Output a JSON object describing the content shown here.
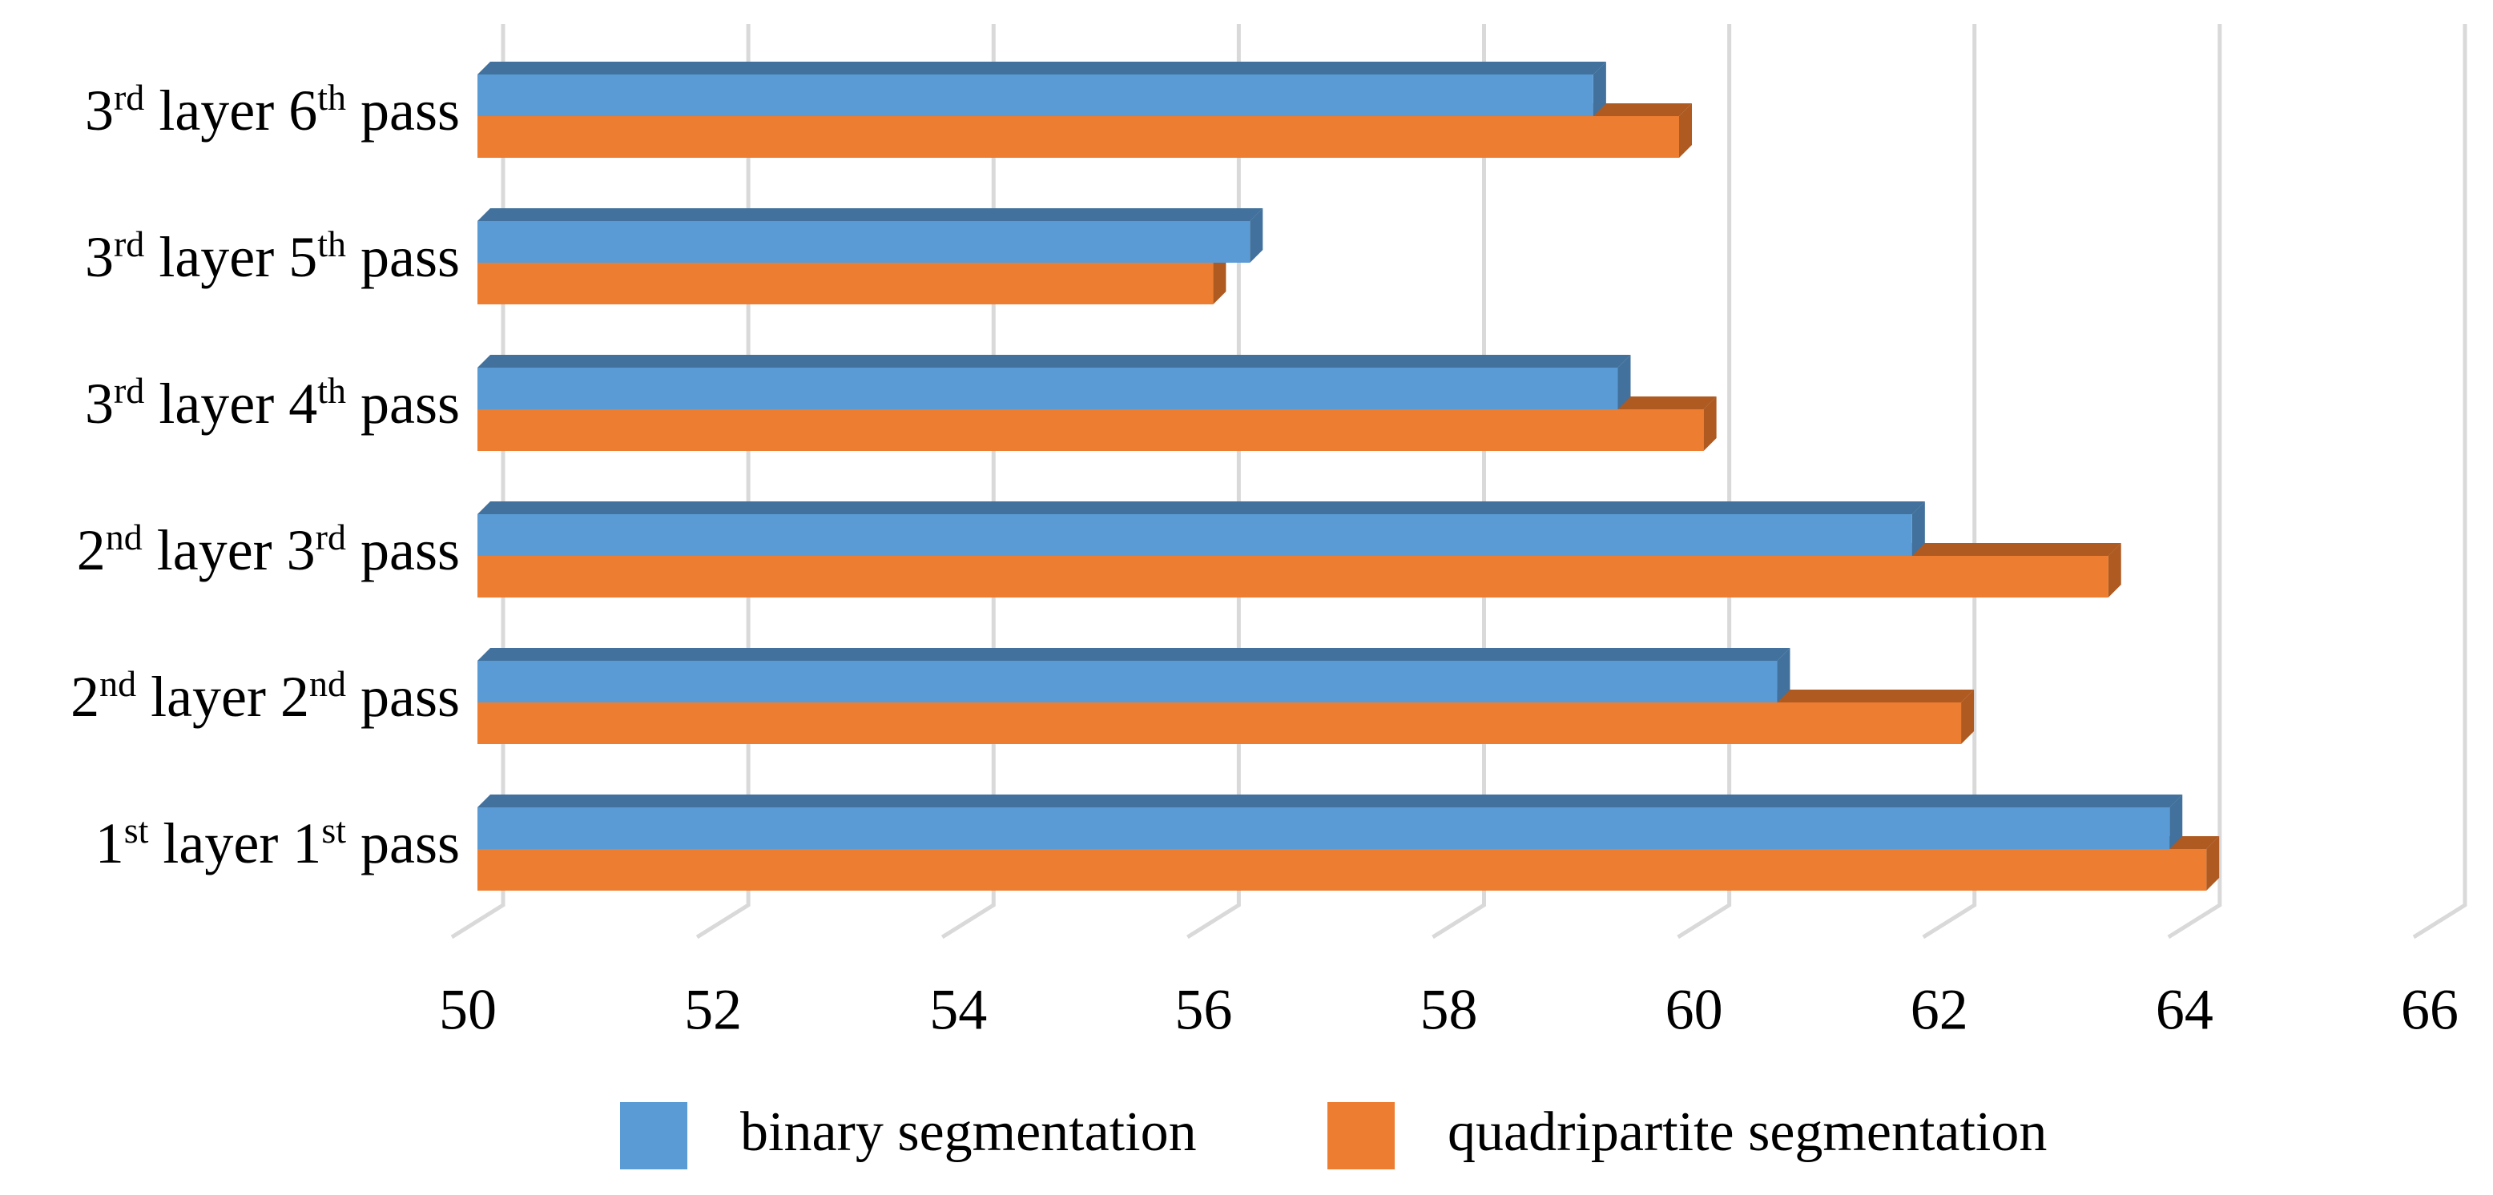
{
  "chart_data": {
    "type": "bar3d",
    "orientation": "horizontal",
    "categories": [
      "1st  layer 1st pass",
      "2nd layer 2nd pass",
      "2nd layer 3rd pass",
      "3rd layer 4th pass",
      "3rd layer 5th pass",
      "3rd layer 6th pass"
    ],
    "series": [
      {
        "name": "binary segmentation",
        "color": "#5b9bd5",
        "side_color": "#41719c",
        "values": [
          63.8,
          60.6,
          61.7,
          59.3,
          56.3,
          59.1
        ]
      },
      {
        "name": "quadripartite segmentation",
        "color": "#ed7d31",
        "side_color": "#ae5a21",
        "values": [
          64.1,
          62.1,
          63.3,
          60.0,
          56.0,
          59.8
        ]
      }
    ],
    "xlim": [
      50,
      66
    ],
    "xticks": [
      50,
      52,
      54,
      56,
      58,
      60,
      62,
      64,
      66
    ],
    "grid": true,
    "legend": "bottom"
  }
}
